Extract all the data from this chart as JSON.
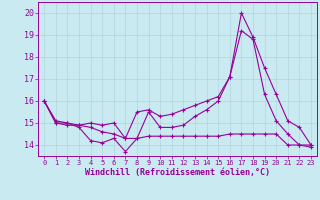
{
  "xlabel": "Windchill (Refroidissement éolien,°C)",
  "bg_color": "#c8eaf0",
  "line_color": "#990099",
  "grid_color": "#b0d4de",
  "xlim": [
    -0.5,
    23.5
  ],
  "ylim": [
    13.5,
    20.5
  ],
  "yticks": [
    14,
    15,
    16,
    17,
    18,
    19,
    20
  ],
  "xticks": [
    0,
    1,
    2,
    3,
    4,
    5,
    6,
    7,
    8,
    9,
    10,
    11,
    12,
    13,
    14,
    15,
    16,
    17,
    18,
    19,
    20,
    21,
    22,
    23
  ],
  "series1": [
    16.0,
    15.0,
    15.0,
    14.8,
    14.2,
    14.1,
    14.3,
    13.7,
    14.3,
    15.5,
    14.8,
    14.8,
    14.9,
    15.3,
    15.6,
    16.0,
    17.1,
    19.2,
    18.8,
    16.3,
    15.1,
    14.5,
    14.0,
    13.9
  ],
  "series2": [
    16.0,
    15.1,
    15.0,
    14.9,
    14.8,
    14.6,
    14.5,
    14.3,
    15.5,
    15.6,
    15.3,
    15.4,
    15.6,
    15.8,
    16.0,
    16.2,
    17.1,
    20.0,
    18.9,
    17.5,
    16.3,
    15.1,
    14.8,
    14.0
  ],
  "series3": [
    16.0,
    15.0,
    14.9,
    14.9,
    15.0,
    14.9,
    15.0,
    14.3,
    14.3,
    14.4,
    14.4,
    14.4,
    14.4,
    14.4,
    14.4,
    14.4,
    14.5,
    14.5,
    14.5,
    14.5,
    14.5,
    14.0,
    14.0,
    14.0
  ],
  "xlabel_fontsize": 6,
  "ytick_fontsize": 6,
  "xtick_fontsize": 5
}
